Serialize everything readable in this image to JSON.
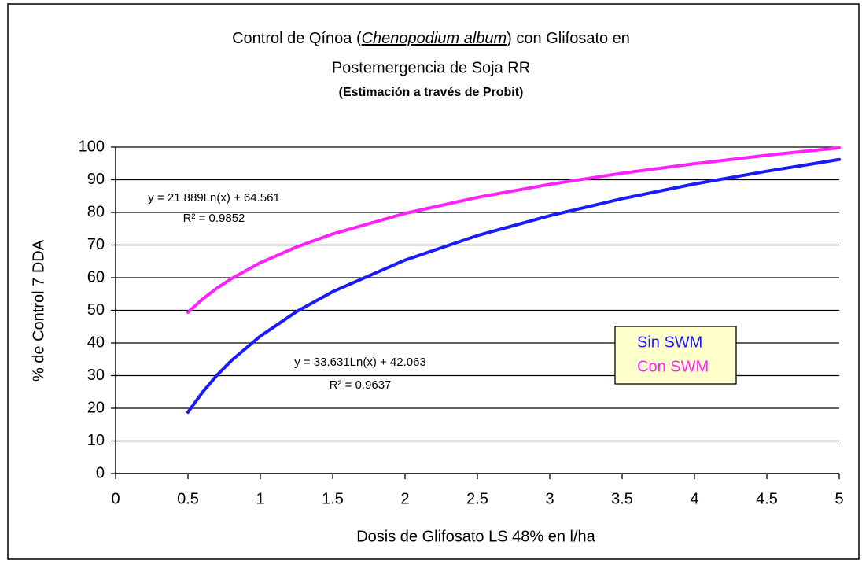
{
  "chart_data": {
    "type": "line",
    "title_parts": [
      "Control de Qínoa  (",
      "Chenopodium album",
      ") con Glifosato en"
    ],
    "title_line2": "Postemergencia de Soja RR",
    "subtitle": "(Estimación a través de Probit)",
    "x_label": "Dosis de Glifosato LS 48% en  l/ha",
    "y_label": "% de Control 7 DDA",
    "x": [
      0.5,
      0.6,
      0.7,
      0.8,
      1,
      1.25,
      1.5,
      2,
      2.5,
      3,
      3.5,
      4,
      4.5,
      5
    ],
    "series": [
      {
        "name": "Sin  SWM",
        "color": "#1a1aff",
        "values": [
          18.8,
          24.9,
          30.1,
          34.6,
          42.1,
          49.6,
          55.7,
          65.4,
          72.9,
          79.0,
          84.2,
          88.7,
          92.6,
          96.2
        ]
      },
      {
        "name": "Con SWM",
        "color": "#ff22ff",
        "values": [
          49.4,
          53.4,
          56.8,
          59.7,
          64.6,
          69.4,
          73.4,
          79.7,
          84.6,
          88.6,
          92.0,
          94.9,
          97.5,
          99.8
        ]
      }
    ],
    "annotations": [
      {
        "equation": "y = 21.889Ln(x) + 64.561",
        "r2": "R² = 0.9852"
      },
      {
        "equation": "y = 33.631Ln(x) + 42.063",
        "r2": "R² = 0.9637"
      }
    ],
    "xlim": [
      0,
      5
    ],
    "xticks": [
      0,
      0.5,
      1,
      1.5,
      2,
      2.5,
      3,
      3.5,
      4,
      4.5,
      5
    ],
    "ylim": [
      0,
      100
    ],
    "yticks": [
      0,
      10,
      20,
      30,
      40,
      50,
      60,
      70,
      80,
      90,
      100
    ],
    "grid": true,
    "legend_background": "#ffffcc"
  }
}
